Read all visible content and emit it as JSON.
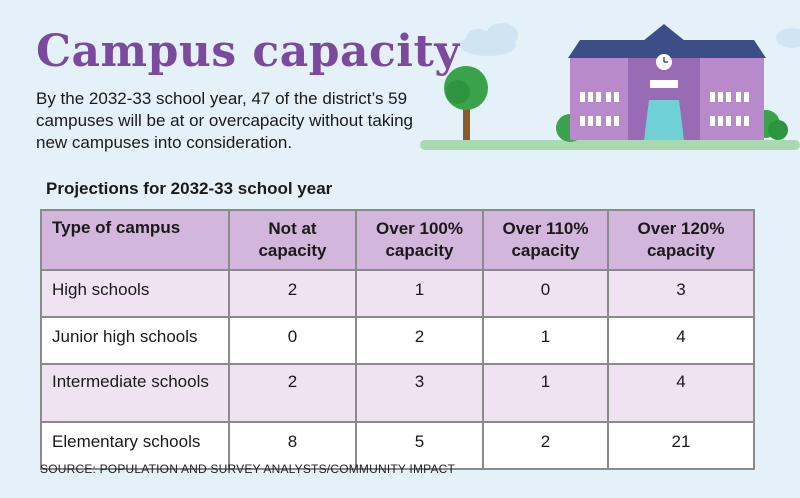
{
  "title": "Campus capacity",
  "subtitle": "By the 2032-33 school year, 47 of the district’s 59 campuses will be at or overcapacity without taking new campuses into consideration.",
  "source": "SOURCE: POPULATION AND SURVEY ANALYSTS/COMMUNITY IMPACT",
  "colors": {
    "title": "#7b4a9e",
    "header_fill": "#d2b6dc",
    "row_tint": "#efe3f2",
    "background": "#e4f1f8"
  },
  "chart_data": {
    "type": "table",
    "title": "Projections for 2032-33 school year",
    "columns": [
      "Type of campus",
      "Not at capacity",
      "Over 100% capacity",
      "Over 110% capacity",
      "Over 120% capacity"
    ],
    "rows": [
      {
        "label": "High schools",
        "values": [
          "2",
          "1",
          "0",
          "3"
        ]
      },
      {
        "label": "Junior high schools",
        "values": [
          "0",
          "2",
          "1",
          "4"
        ]
      },
      {
        "label": "Intermediate schools",
        "values": [
          "2",
          "3",
          "1",
          "4"
        ]
      },
      {
        "label": "Elementary schools",
        "values": [
          "8",
          "5",
          "2",
          "21"
        ]
      }
    ]
  }
}
